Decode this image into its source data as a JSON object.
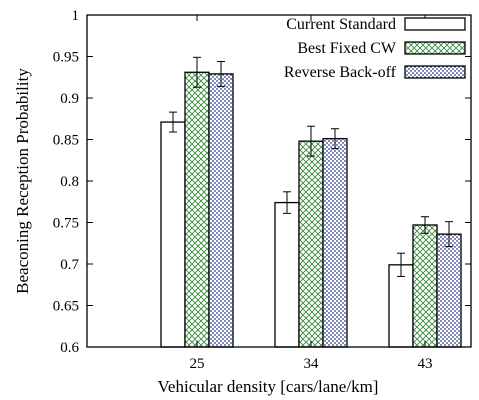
{
  "chart_data": {
    "type": "bar",
    "title": "",
    "xlabel": "Vehicular density [cars/lane/km]",
    "ylabel": "Beaconing Reception Probability",
    "ylim": [
      0.6,
      1.0
    ],
    "yticks": [
      "0.6",
      "0.65",
      "0.7",
      "0.75",
      "0.8",
      "0.85",
      "0.9",
      "0.95",
      "1"
    ],
    "categories": [
      "25",
      "34",
      "43"
    ],
    "legend_position": "top-right",
    "grid": false,
    "series": [
      {
        "name": "Current Standard",
        "values": [
          0.871,
          0.774,
          0.699
        ],
        "errors": [
          0.012,
          0.013,
          0.014
        ],
        "pattern": "empty",
        "color": "#000000"
      },
      {
        "name": "Best Fixed CW",
        "values": [
          0.931,
          0.848,
          0.747
        ],
        "errors": [
          0.018,
          0.018,
          0.01
        ],
        "pattern": "cross-hatch",
        "color": "#3a8a3a"
      },
      {
        "name": "Reverse Back-off",
        "values": [
          0.929,
          0.851,
          0.736
        ],
        "errors": [
          0.015,
          0.012,
          0.015
        ],
        "pattern": "dots",
        "color": "#2a3a8a"
      }
    ]
  }
}
